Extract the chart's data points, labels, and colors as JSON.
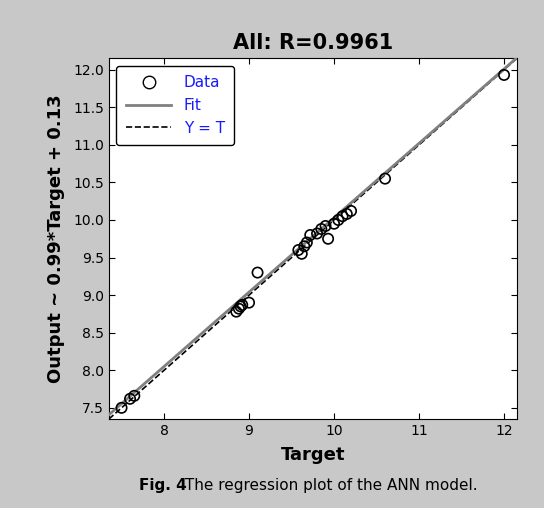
{
  "title": "All: R=0.9961",
  "xlabel": "Target",
  "ylabel": "Output ~ 0.99*Target + 0.13",
  "xlim": [
    7.35,
    12.15
  ],
  "ylim": [
    7.35,
    12.15
  ],
  "xticks": [
    8,
    9,
    10,
    11,
    12
  ],
  "yticks": [
    7.5,
    8.0,
    8.5,
    9.0,
    9.5,
    10.0,
    10.5,
    11.0,
    11.5,
    12.0
  ],
  "data_x": [
    7.5,
    7.6,
    7.65,
    8.85,
    8.88,
    8.9,
    8.92,
    9.0,
    9.1,
    9.58,
    9.62,
    9.65,
    9.68,
    9.72,
    9.8,
    9.85,
    9.9,
    9.93,
    10.0,
    10.05,
    10.1,
    10.15,
    10.2,
    10.6,
    12.0
  ],
  "data_y": [
    7.5,
    7.62,
    7.66,
    8.78,
    8.82,
    8.85,
    8.87,
    8.9,
    9.3,
    9.6,
    9.55,
    9.65,
    9.7,
    9.8,
    9.82,
    9.88,
    9.92,
    9.75,
    9.95,
    10.0,
    10.05,
    10.08,
    10.12,
    10.55,
    11.93
  ],
  "fit_slope": 0.99,
  "fit_intercept": 0.13,
  "line_color": "#808080",
  "dashed_color": "#000000",
  "legend_text_color": "#1a1aff",
  "marker_color": "none",
  "marker_edgecolor": "#000000",
  "background_color": "#c8c8c8",
  "plot_bg_color": "#ffffff",
  "title_fontsize": 15,
  "label_fontsize": 13,
  "tick_fontsize": 10,
  "legend_fontsize": 11,
  "caption": "Fig. 4 The regression plot of the ANN model.",
  "caption_fontsize": 11
}
